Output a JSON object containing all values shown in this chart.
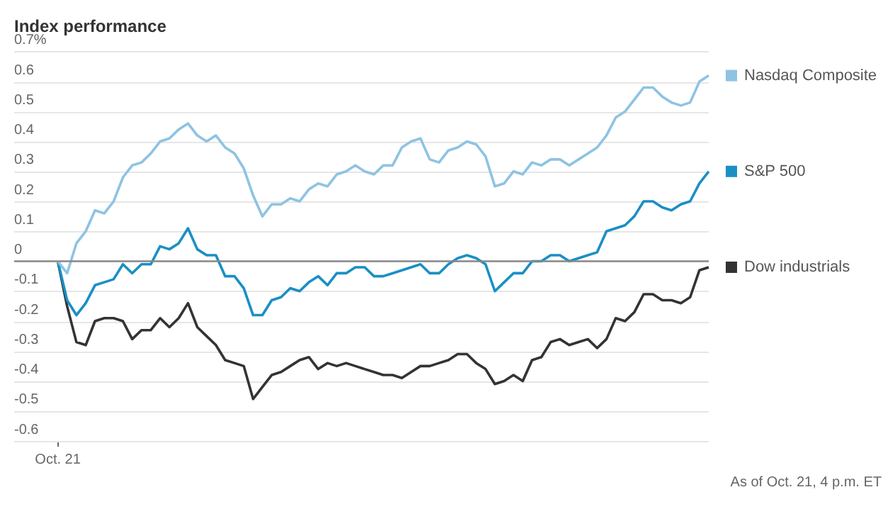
{
  "chart_data": {
    "type": "line",
    "title": "Index performance",
    "categories": [
      "Oct. 21",
      null,
      null,
      null,
      null,
      null,
      null,
      null,
      null,
      null,
      null,
      null,
      null,
      null,
      null,
      null,
      null,
      null,
      null,
      null,
      null,
      null,
      null,
      null,
      null,
      null,
      null,
      null,
      null,
      null,
      null,
      null,
      null,
      null,
      null,
      null,
      null,
      null,
      null,
      null,
      null,
      null,
      null,
      null,
      null,
      null,
      null,
      null,
      null,
      null,
      null,
      null,
      null,
      null,
      null,
      null,
      null,
      null,
      null,
      null,
      null,
      null,
      null,
      null,
      null,
      null,
      null,
      null,
      null,
      null,
      null
    ],
    "series": [
      {
        "name": "Nasdaq Composite",
        "color": "#8ec3e3",
        "values": [
          0,
          -0.04,
          0.06,
          0.1,
          0.17,
          0.16,
          0.2,
          0.28,
          0.32,
          0.33,
          0.36,
          0.4,
          0.41,
          0.44,
          0.46,
          0.42,
          0.4,
          0.42,
          0.38,
          0.36,
          0.31,
          0.22,
          0.15,
          0.19,
          0.19,
          0.21,
          0.2,
          0.24,
          0.26,
          0.25,
          0.29,
          0.3,
          0.32,
          0.3,
          0.29,
          0.32,
          0.32,
          0.38,
          0.4,
          0.41,
          0.34,
          0.33,
          0.37,
          0.38,
          0.4,
          0.39,
          0.35,
          0.25,
          0.26,
          0.3,
          0.29,
          0.33,
          0.32,
          0.34,
          0.34,
          0.32,
          0.34,
          0.36,
          0.38,
          0.42,
          0.48,
          0.5,
          0.54,
          0.58,
          0.58,
          0.55,
          0.53,
          0.52,
          0.53,
          0.6,
          0.62
        ]
      },
      {
        "name": "S&P 500",
        "color": "#1a8fc4",
        "values": [
          0,
          -0.13,
          -0.18,
          -0.14,
          -0.08,
          -0.07,
          -0.06,
          -0.01,
          -0.04,
          -0.01,
          -0.01,
          0.05,
          0.04,
          0.06,
          0.11,
          0.04,
          0.02,
          0.02,
          -0.05,
          -0.05,
          -0.09,
          -0.18,
          -0.18,
          -0.13,
          -0.12,
          -0.09,
          -0.1,
          -0.07,
          -0.05,
          -0.08,
          -0.04,
          -0.04,
          -0.02,
          -0.02,
          -0.05,
          -0.05,
          -0.04,
          -0.03,
          -0.02,
          -0.01,
          -0.04,
          -0.04,
          -0.01,
          0.01,
          0.02,
          0.01,
          -0.01,
          -0.1,
          -0.07,
          -0.04,
          -0.04,
          0,
          0,
          0.02,
          0.02,
          0,
          0.01,
          0.02,
          0.03,
          0.1,
          0.11,
          0.12,
          0.15,
          0.2,
          0.2,
          0.18,
          0.17,
          0.19,
          0.2,
          0.26,
          0.3
        ]
      },
      {
        "name": "Dow industrials",
        "color": "#333333",
        "values": [
          0,
          -0.15,
          -0.27,
          -0.28,
          -0.2,
          -0.19,
          -0.19,
          -0.2,
          -0.26,
          -0.23,
          -0.23,
          -0.19,
          -0.22,
          -0.19,
          -0.14,
          -0.22,
          -0.25,
          -0.28,
          -0.33,
          -0.34,
          -0.35,
          -0.46,
          -0.42,
          -0.38,
          -0.37,
          -0.35,
          -0.33,
          -0.32,
          -0.36,
          -0.34,
          -0.35,
          -0.34,
          -0.35,
          -0.36,
          -0.37,
          -0.38,
          -0.38,
          -0.39,
          -0.37,
          -0.35,
          -0.35,
          -0.34,
          -0.33,
          -0.31,
          -0.31,
          -0.34,
          -0.36,
          -0.41,
          -0.4,
          -0.38,
          -0.4,
          -0.33,
          -0.32,
          -0.27,
          -0.26,
          -0.28,
          -0.27,
          -0.26,
          -0.29,
          -0.26,
          -0.19,
          -0.2,
          -0.17,
          -0.11,
          -0.11,
          -0.13,
          -0.13,
          -0.14,
          -0.12,
          -0.03,
          -0.02
        ]
      }
    ],
    "ylim": [
      -0.6,
      0.7
    ],
    "yticks": [
      {
        "value": 0.7,
        "label": "0.7%"
      },
      0.6,
      0.5,
      0.4,
      0.3,
      0.2,
      0.1,
      0,
      -0.1,
      -0.2,
      -0.3,
      -0.4,
      -0.5,
      -0.6
    ],
    "grid": "y",
    "legend": "right",
    "marker": "none",
    "line_style": "solid",
    "ref_lines": [
      {
        "axis": "y",
        "value": 0,
        "color": "#888888"
      }
    ],
    "annotations": [
      "As of Oct. 21, 4 p.m. ET"
    ]
  }
}
